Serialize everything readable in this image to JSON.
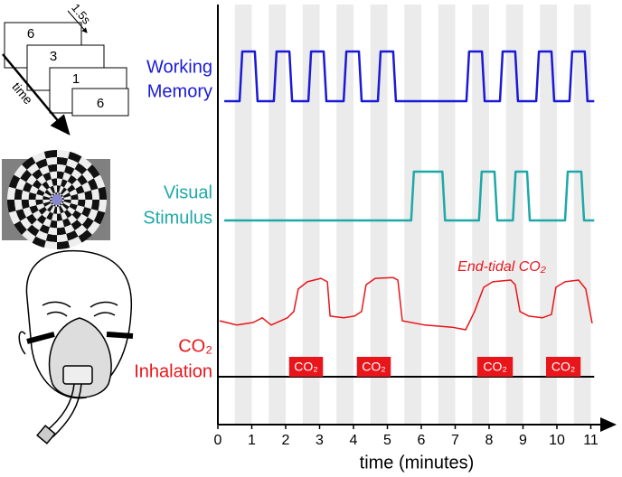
{
  "chart_data": {
    "type": "line",
    "xlabel": "time (minutes)",
    "xlim": [
      0,
      11.7
    ],
    "xticks": [
      0,
      1,
      2,
      3,
      4,
      5,
      6,
      7,
      8,
      9,
      10,
      11
    ],
    "bands": [
      [
        0.5,
        1
      ],
      [
        1.5,
        2
      ],
      [
        2.5,
        3
      ],
      [
        3.5,
        4
      ],
      [
        4.5,
        5
      ],
      [
        5.5,
        6
      ],
      [
        6.5,
        7
      ],
      [
        7.5,
        8
      ],
      [
        8.5,
        9
      ],
      [
        9.5,
        10
      ],
      [
        10.5,
        11
      ]
    ],
    "series": [
      {
        "name": "Working Memory",
        "label_lines": [
          "Working",
          "Memory"
        ],
        "color": "#1a1ad6",
        "x": [
          0.19,
          0.64,
          0.72,
          1.09,
          1.17,
          1.65,
          1.73,
          2.11,
          2.19,
          2.67,
          2.75,
          3.12,
          3.2,
          3.71,
          3.79,
          4.16,
          4.24,
          4.72,
          4.8,
          5.17,
          5.25,
          7.33,
          7.41,
          7.79,
          7.87,
          8.32,
          8.4,
          8.77,
          8.85,
          9.39,
          9.47,
          9.84,
          9.92,
          10.37,
          10.45,
          10.82,
          10.9,
          11.1
        ],
        "values": [
          0,
          0,
          1,
          1,
          0,
          0,
          1,
          1,
          0,
          0,
          1,
          1,
          0,
          0,
          1,
          1,
          0,
          0,
          1,
          1,
          0,
          0,
          1,
          1,
          0,
          0,
          1,
          1,
          0,
          0,
          1,
          1,
          0,
          0,
          1,
          1,
          0,
          0
        ]
      },
      {
        "name": "Visual Stimulus",
        "label_lines": [
          "Visual",
          "Stimulus"
        ],
        "color": "#1fa8a8",
        "x": [
          0.19,
          5.7,
          5.78,
          6.62,
          6.7,
          7.7,
          7.78,
          8.16,
          8.24,
          8.7,
          8.78,
          9.12,
          9.2,
          10.24,
          10.32,
          10.72,
          10.8,
          11.1
        ],
        "values": [
          0,
          0,
          1,
          1,
          0,
          0,
          1,
          1,
          0,
          0,
          1,
          1,
          0,
          0,
          1,
          1,
          0,
          0
        ]
      },
      {
        "name": "End-tidal CO₂",
        "label_lines": [
          "End-tidal CO₂"
        ],
        "color": "#e8161b",
        "x": [
          0.05,
          0.56,
          1.04,
          1.31,
          1.57,
          2.05,
          2.24,
          2.37,
          2.64,
          3.04,
          3.23,
          3.31,
          3.71,
          4.03,
          4.24,
          4.37,
          4.64,
          5.17,
          5.31,
          5.44,
          6.11,
          6.91,
          7.31,
          7.57,
          7.84,
          8.11,
          8.64,
          8.77,
          8.91,
          9.17,
          9.57,
          9.84,
          9.97,
          10.24,
          10.64,
          10.85,
          11.04
        ],
        "values": [
          0.04,
          -0.06,
          0,
          0.11,
          -0.06,
          0.11,
          0.26,
          0.79,
          0.96,
          1.04,
          0.96,
          0.15,
          0.11,
          0.15,
          0.26,
          0.89,
          1.04,
          1.06,
          1.0,
          0.04,
          -0.06,
          -0.11,
          -0.17,
          0.26,
          0.83,
          0.96,
          1.0,
          0.89,
          0.26,
          0.15,
          0.11,
          0.19,
          0.83,
          0.96,
          1.0,
          0.79,
          -0.02
        ]
      }
    ],
    "inhalation_label_lines": [
      "CO₂",
      "Inhalation"
    ],
    "inhalation_blocks": [
      {
        "start": 2.1,
        "end": 3.1,
        "label": "CO₂"
      },
      {
        "start": 4.1,
        "end": 5.1,
        "label": "CO₂"
      },
      {
        "start": 7.65,
        "end": 8.7,
        "label": "CO₂"
      },
      {
        "start": 9.68,
        "end": 10.7,
        "label": "CO₂"
      }
    ]
  },
  "task_illustration": {
    "digits": [
      "6",
      "3",
      "1",
      "6"
    ],
    "interval": "1.5s",
    "time_label": "time"
  }
}
